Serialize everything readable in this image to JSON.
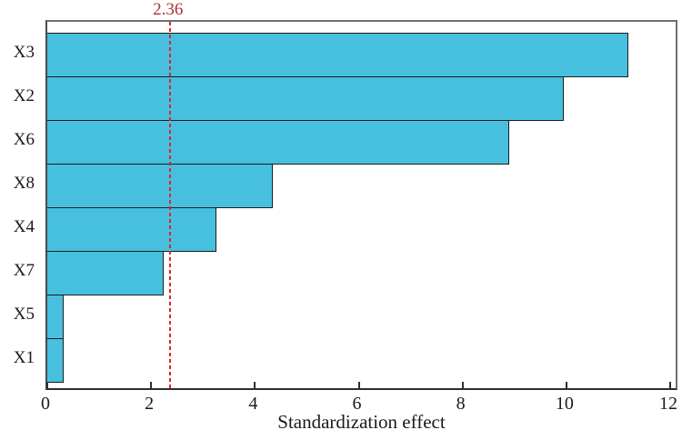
{
  "chart_data": {
    "type": "bar",
    "orientation": "horizontal",
    "categories": [
      "X3",
      "X2",
      "X6",
      "X8",
      "X4",
      "X7",
      "X5",
      "X1"
    ],
    "values": [
      11.2,
      9.95,
      8.9,
      4.35,
      3.25,
      2.25,
      0.32,
      0.32
    ],
    "xlabel": "Standardization effect",
    "ylabel": "",
    "xlim": [
      0,
      12.17
    ],
    "x_ticks": [
      0,
      2,
      4,
      6,
      8,
      10,
      12
    ],
    "x_tick_labels": [
      "0",
      "2",
      "4",
      "6",
      "8",
      "10",
      "12"
    ],
    "threshold": {
      "value": 2.36,
      "label": "2.36"
    },
    "grid": false,
    "legend": null,
    "colors": {
      "bar_fill": "#47c0e0",
      "bar_border": "#1d1d1d",
      "threshold_line": "#e02424",
      "threshold_label": "#a83230",
      "frame": "#6f6f6f",
      "axis": "#2e2e2e",
      "text": "#1a1a1a"
    }
  }
}
